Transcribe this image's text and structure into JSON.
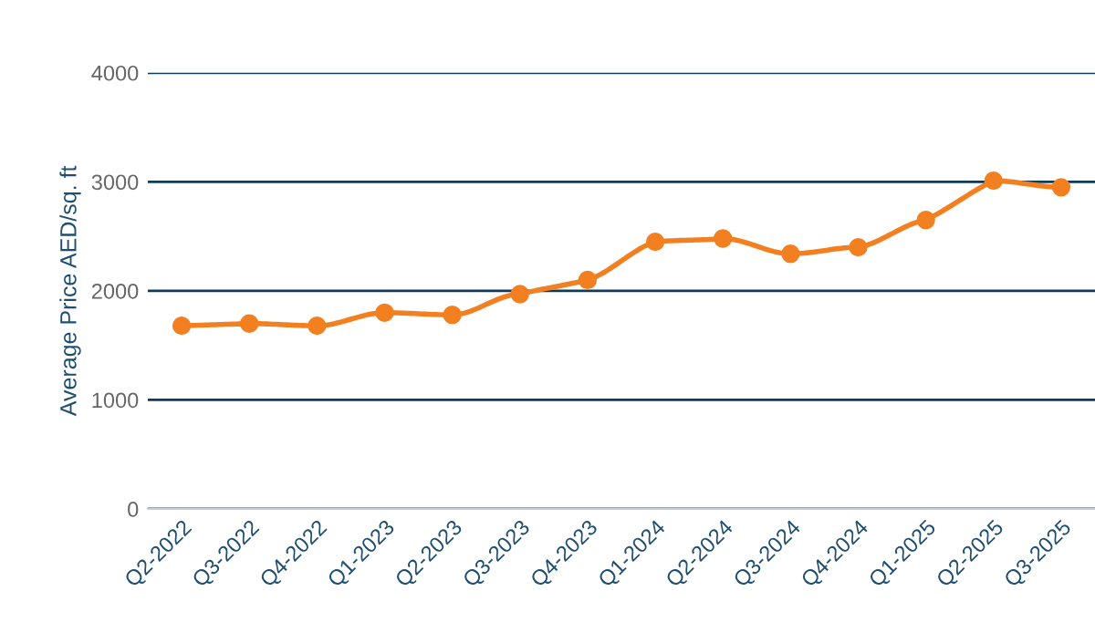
{
  "chart_data": {
    "type": "line",
    "ylabel": "Average Price AED/sq. ft",
    "categories": [
      "Q2-2022",
      "Q3-2022",
      "Q4-2022",
      "Q1-2023",
      "Q2-2023",
      "Q3-2023",
      "Q4-2023",
      "Q1-2024",
      "Q2-2024",
      "Q3-2024",
      "Q4-2024",
      "Q1-2025",
      "Q2-2025",
      "Q3-2025"
    ],
    "series": [
      {
        "color": "#f28021",
        "values": [
          1680,
          1700,
          1680,
          1800,
          1780,
          1970,
          2100,
          2450,
          2480,
          2340,
          2400,
          2650,
          3010,
          2950
        ]
      }
    ],
    "ylim": [
      0,
      4000
    ],
    "yticks": [
      0,
      1000,
      2000,
      3000,
      4000
    ],
    "grid": "y",
    "marker": "circle",
    "line_style": "solid"
  }
}
